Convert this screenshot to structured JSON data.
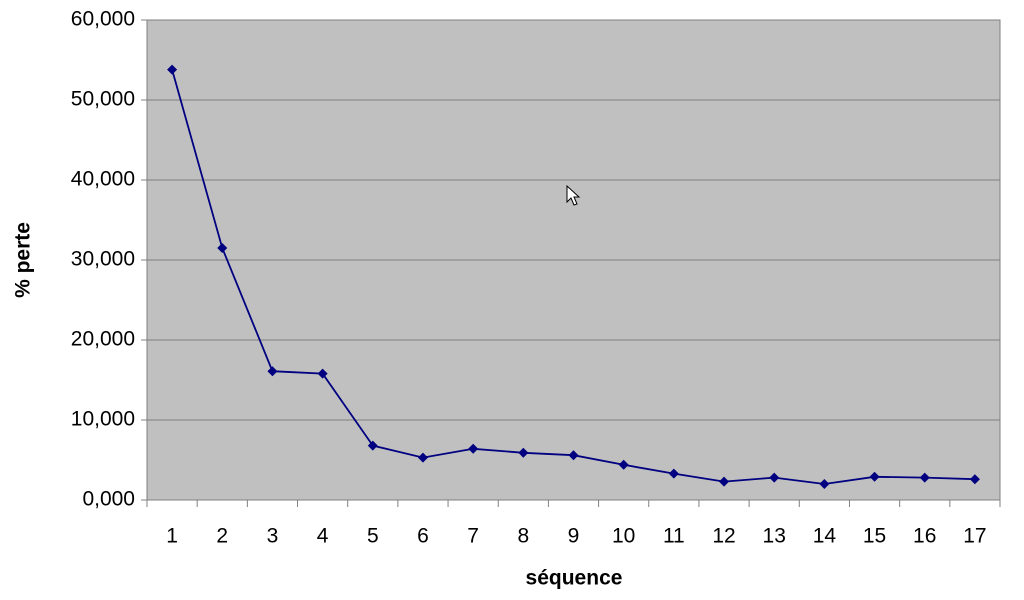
{
  "chart_data": {
    "type": "line",
    "x_label": "séquence",
    "y_label": "% perte",
    "categories": [
      "1",
      "2",
      "3",
      "4",
      "5",
      "6",
      "7",
      "8",
      "9",
      "10",
      "11",
      "12",
      "13",
      "14",
      "15",
      "16",
      "17"
    ],
    "series": [
      {
        "name": "% perte",
        "color": "#000080",
        "values": [
          53.8,
          31.5,
          16.1,
          15.8,
          6.8,
          5.3,
          6.4,
          5.9,
          5.6,
          4.4,
          3.3,
          2.3,
          2.8,
          2.0,
          2.9,
          2.8,
          2.6
        ]
      }
    ],
    "ylim": [
      0,
      60
    ],
    "yticks": [
      {
        "value": 0,
        "label": "0,000"
      },
      {
        "value": 10,
        "label": "10,000"
      },
      {
        "value": 20,
        "label": "20,000"
      },
      {
        "value": 30,
        "label": "30,000"
      },
      {
        "value": 40,
        "label": "40,000"
      },
      {
        "value": 50,
        "label": "50,000"
      },
      {
        "value": 60,
        "label": "60,000"
      }
    ],
    "grid": true
  }
}
